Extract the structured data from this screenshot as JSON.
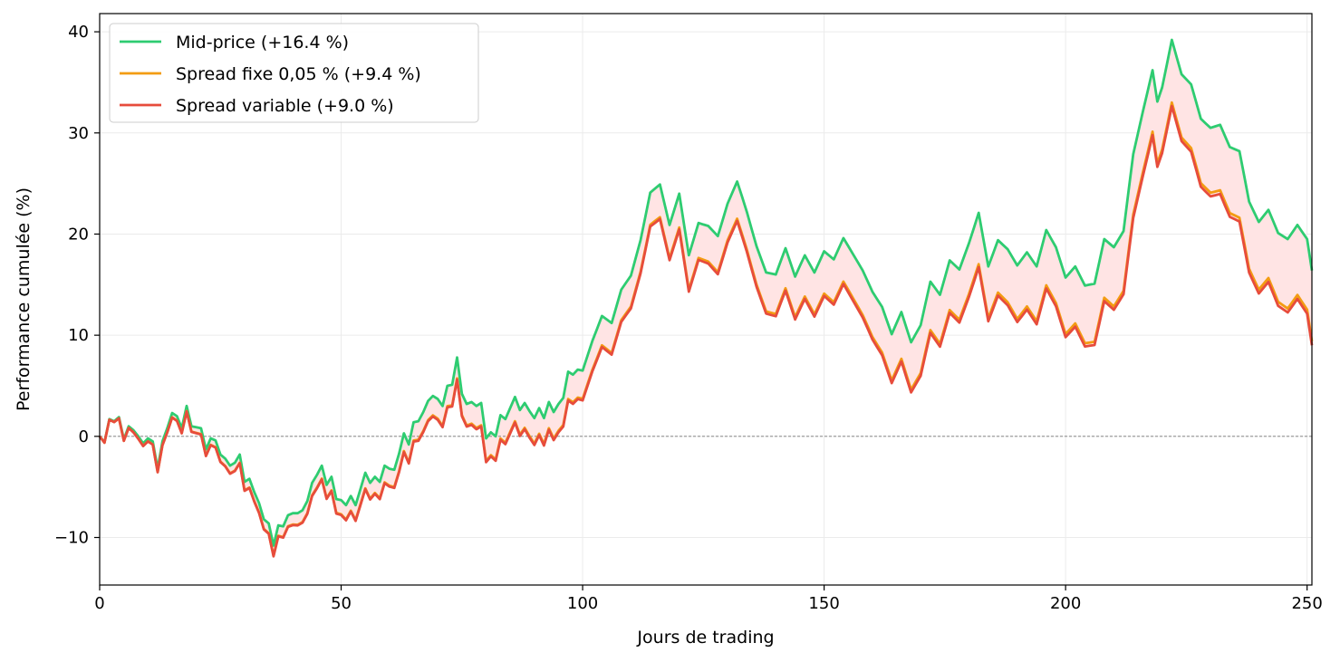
{
  "chart_data": {
    "type": "line",
    "xlabel": "Jours de trading",
    "ylabel": "Performance cumulée (%)",
    "xlim": [
      0,
      251
    ],
    "ylim": [
      -14.7,
      41.8
    ],
    "xticks": [
      0,
      50,
      100,
      150,
      200,
      250
    ],
    "yticks": [
      -10,
      0,
      10,
      20,
      30,
      40
    ],
    "ytick_labels": [
      "−10",
      "0",
      "10",
      "20",
      "30",
      "40"
    ],
    "grid": true,
    "legend_position": "top-left",
    "zero_line": true,
    "fill_between": {
      "upper": "Mid-price (+16.4 %)",
      "lower": "Spread variable (+9.0 %)",
      "color": "#ffe4e4"
    },
    "anchor_points": {
      "x": [
        0,
        1,
        2,
        3,
        4,
        5,
        6,
        7,
        8,
        9,
        10,
        11,
        12,
        13,
        14,
        15,
        16,
        17,
        18,
        19,
        20,
        21,
        22,
        23,
        24,
        25,
        26,
        27,
        28,
        29,
        30,
        31,
        32,
        33,
        34,
        35,
        36,
        37,
        38,
        39,
        40,
        41,
        42,
        43,
        44,
        45,
        46,
        47,
        48,
        49,
        50,
        51,
        52,
        53,
        54,
        55,
        56,
        57,
        58,
        59,
        60,
        61,
        62,
        63,
        64,
        65,
        66,
        67,
        68,
        69,
        70,
        71,
        72,
        73,
        74,
        75,
        76,
        77,
        78,
        79,
        80,
        81,
        82,
        83,
        84,
        85,
        86,
        87,
        88,
        89,
        90,
        91,
        92,
        93,
        94,
        95,
        96,
        97,
        98,
        99,
        100,
        102,
        104,
        106,
        108,
        110,
        112,
        114,
        116,
        118,
        120,
        122,
        124,
        126,
        128,
        130,
        132,
        134,
        136,
        138,
        140,
        142,
        144,
        146,
        148,
        150,
        152,
        154,
        156,
        158,
        160,
        162,
        164,
        166,
        168,
        170,
        172,
        174,
        176,
        178,
        180,
        182,
        184,
        186,
        188,
        190,
        192,
        194,
        196,
        198,
        200,
        202,
        204,
        206,
        208,
        210,
        212,
        214,
        216,
        218,
        219,
        220,
        222,
        224,
        226,
        228,
        230,
        232,
        234,
        236,
        238,
        240,
        242,
        244,
        246,
        248,
        250,
        251
      ],
      "mid": [
        0,
        -0.6,
        1.7,
        1.5,
        1.9,
        -0.3,
        1.0,
        0.6,
        0,
        -0.7,
        -0.2,
        -0.5,
        -3.2,
        -0.5,
        0.8,
        2.3,
        2.0,
        0.8,
        3.0,
        1.0,
        0.9,
        0.8,
        -1.3,
        -0.2,
        -0.4,
        -1.8,
        -2.2,
        -2.9,
        -2.6,
        -1.8,
        -4.5,
        -4.2,
        -5.5,
        -6.6,
        -8.2,
        -8.6,
        -10.8,
        -8.8,
        -8.9,
        -7.8,
        -7.6,
        -7.6,
        -7.3,
        -6.4,
        -4.6,
        -3.8,
        -2.9,
        -4.8,
        -4.0,
        -6.2,
        -6.3,
        -6.8,
        -5.9,
        -6.8,
        -5.2,
        -3.6,
        -4.6,
        -4.0,
        -4.5,
        -2.9,
        -3.2,
        -3.3,
        -1.7,
        0.3,
        -0.8,
        1.4,
        1.5,
        2.4,
        3.5,
        4.0,
        3.7,
        3.0,
        5.0,
        5.1,
        7.8,
        4.2,
        3.2,
        3.4,
        3.0,
        3.3,
        -0.2,
        0.4,
        0,
        2.1,
        1.7,
        2.8,
        3.9,
        2.6,
        3.3,
        2.5,
        1.8,
        2.8,
        1.8,
        3.4,
        2.4,
        3.2,
        3.8,
        6.4,
        6.1,
        6.6,
        6.5,
        9.4,
        11.9,
        11.2,
        14.5,
        15.9,
        19.4,
        24.1,
        24.9,
        20.9,
        24.0,
        17.9,
        21.1,
        20.8,
        19.8,
        23.0,
        25.2,
        22.2,
        18.8,
        16.2,
        16.0,
        18.6,
        15.8,
        17.9,
        16.2,
        18.3,
        17.5,
        19.6,
        18.0,
        16.4,
        14.3,
        12.8,
        10.1,
        12.3,
        9.3,
        11.0,
        15.3,
        14.0,
        17.4,
        16.5,
        19.1,
        22.1,
        16.8,
        19.4,
        18.5,
        16.9,
        18.2,
        16.8,
        20.4,
        18.7,
        15.7,
        16.8,
        14.9,
        15.1,
        19.5,
        18.7,
        20.3,
        27.9,
        32.1,
        36.2,
        33.1,
        34.5,
        39.2,
        35.8,
        34.8,
        31.4,
        30.5,
        30.8,
        28.6,
        28.2,
        23.2,
        21.2,
        22.4,
        20.1,
        19.5,
        20.9,
        19.5,
        20.0,
        19.9,
        18.5,
        16.4
      ]
    },
    "series": [
      {
        "name": "Mid-price (+16.4 %)",
        "color": "#2ecc71",
        "gap_end": 0
      },
      {
        "name": "Spread fixe 0,05 % (+9.4 %)",
        "color": "#f39c12",
        "gap_end": 7.0
      },
      {
        "name": "Spread variable (+9.0 %)",
        "color": "#e74c3c",
        "gap_end": 7.4
      }
    ]
  }
}
